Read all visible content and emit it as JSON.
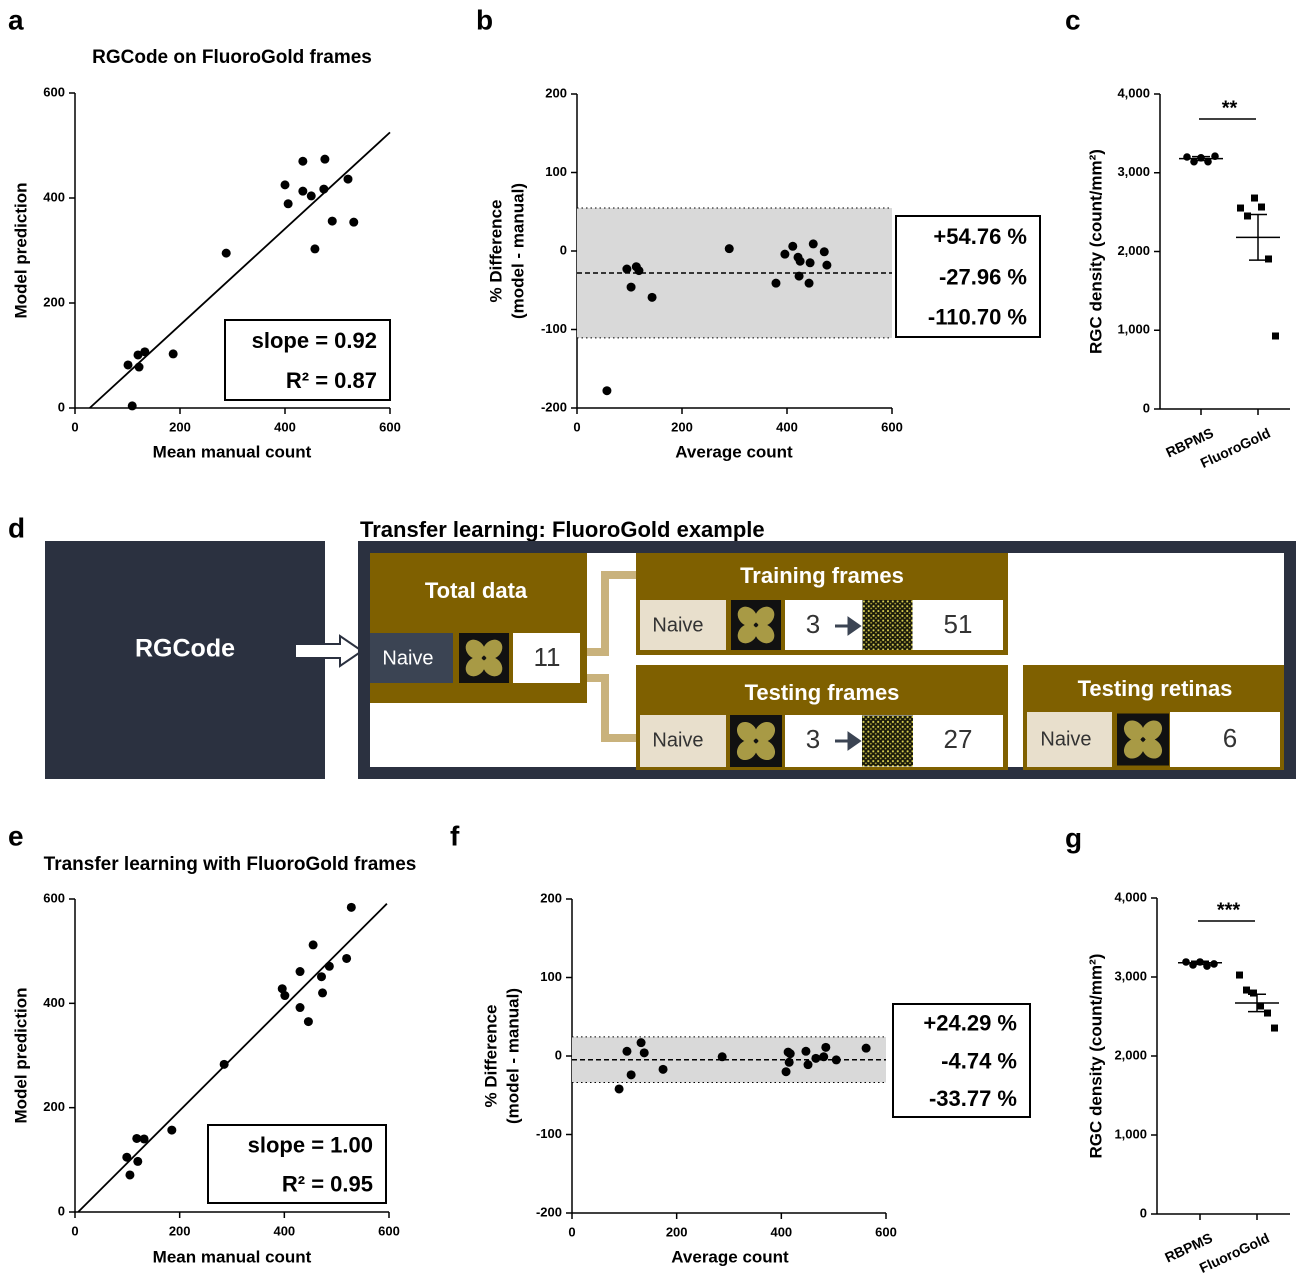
{
  "chart_data": [
    {
      "type": "scatter",
      "panel": "a",
      "title": "RGCode on FluoroGold frames",
      "xlabel": "Mean manual count",
      "ylabel": "Model prediction",
      "color": "#000000",
      "xlim": [
        0,
        600
      ],
      "ylim": [
        0,
        600
      ],
      "xticks": [
        0,
        200,
        400,
        600
      ],
      "yticks": [
        0,
        200,
        400,
        600
      ],
      "x": [
        101,
        109,
        120,
        122,
        133,
        187,
        288,
        400,
        406,
        434,
        434,
        450,
        457,
        474,
        476,
        490,
        520,
        531
      ],
      "values": [
        82,
        4,
        101,
        78,
        107,
        103,
        295,
        425,
        389,
        470,
        413,
        404,
        303,
        417,
        474,
        356,
        436,
        354
      ],
      "fit_line": {
        "x": [
          28,
          600
        ],
        "y": [
          0,
          525
        ]
      },
      "annotations": [
        "slope = 0.92",
        "R² = 0.87"
      ]
    },
    {
      "type": "blandaltman",
      "panel": "b",
      "xlabel": "Average count",
      "ylabel": [
        "% Difference",
        "(model - manual)"
      ],
      "color": "#000000",
      "xlim": [
        0,
        600
      ],
      "ylim": [
        -200,
        200
      ],
      "xticks": [
        0,
        200,
        400,
        600
      ],
      "yticks": [
        -200,
        -100,
        0,
        100,
        200
      ],
      "x": [
        57,
        95,
        103,
        113,
        118,
        143,
        290,
        379,
        396,
        411,
        421,
        423,
        425,
        442,
        444,
        450,
        471,
        476
      ],
      "values": [
        -178,
        -23,
        -46,
        -20,
        -25,
        -59,
        3,
        -41,
        -4,
        6,
        -8,
        -32,
        -13,
        -41,
        -15,
        9,
        -1,
        -18
      ],
      "limits": {
        "values": [
          54.76,
          -27.96,
          -110.7
        ],
        "value_labels": [
          "+54.76 %",
          "-27.96 %",
          "-110.70 %"
        ]
      }
    },
    {
      "type": "dotplot",
      "panel": "c",
      "ylabel": "RGC density (count/mm²)",
      "color": "#000000",
      "ylim": [
        0,
        4000
      ],
      "yticks": [
        0,
        {
          "value": 1000,
          "label": "1,000"
        },
        {
          "value": 2000,
          "label": "2,000"
        },
        {
          "value": 3000,
          "label": "3,000"
        },
        {
          "value": 4000,
          "label": "4,000"
        }
      ],
      "categories": [
        "RBPMS",
        "FluoroGold"
      ],
      "markers": [
        "circle",
        "square"
      ],
      "points": [
        [
          3200,
          3140,
          3190,
          3140,
          3210
        ],
        [
          2552,
          2451,
          2679,
          2565,
          1905,
          927
        ]
      ],
      "means": [
        3180,
        2180
      ],
      "errors": [
        25,
        290
      ],
      "significance": "**"
    },
    {
      "type": "scatter",
      "panel": "e",
      "title": "Transfer learning with FluoroGold frames",
      "xlabel": "Mean manual count",
      "ylabel": "Model prediction",
      "color": "#000000",
      "xlim": [
        0,
        600
      ],
      "ylim": [
        0,
        600
      ],
      "xticks": [
        0,
        200,
        400,
        600
      ],
      "yticks": [
        0,
        200,
        400,
        600
      ],
      "x": [
        99,
        105,
        118,
        120,
        132,
        185,
        285,
        396,
        401,
        430,
        430,
        446,
        455,
        471,
        473,
        486,
        519,
        528
      ],
      "values": [
        105,
        71,
        141,
        97,
        140,
        157,
        283,
        428,
        415,
        461,
        392,
        365,
        512,
        451,
        420,
        471,
        486,
        584
      ],
      "fit_line": {
        "x": [
          6,
          596
        ],
        "y": [
          0,
          591
        ]
      },
      "annotations": [
        "slope = 1.00",
        "R² = 0.95"
      ]
    },
    {
      "type": "blandaltman",
      "panel": "f",
      "xlabel": "Average count",
      "ylabel": [
        "% Difference",
        "(model - manual)"
      ],
      "color": "#000000",
      "xlim": [
        0,
        600
      ],
      "ylim": [
        -200,
        200
      ],
      "xticks": [
        0,
        200,
        400,
        600
      ],
      "yticks": [
        -200,
        -100,
        0,
        100,
        200
      ],
      "x": [
        90,
        105,
        113,
        132,
        138,
        174,
        287,
        409,
        413,
        415,
        417,
        447,
        451,
        466,
        481,
        485,
        505,
        562
      ],
      "values": [
        -42,
        6,
        -24,
        17,
        4,
        -17,
        -1,
        -20,
        5,
        -8,
        3,
        6,
        -11,
        -3,
        -1,
        11,
        -5,
        10
      ],
      "limits": {
        "values": [
          24.29,
          -4.74,
          -33.77
        ],
        "value_labels": [
          "+24.29 %",
          "-4.74 %",
          "-33.77 %"
        ]
      }
    },
    {
      "type": "dotplot",
      "panel": "g",
      "ylabel": "RGC density (count/mm²)",
      "color": "#000000",
      "ylim": [
        0,
        4000
      ],
      "yticks": [
        0,
        {
          "value": 1000,
          "label": "1,000"
        },
        {
          "value": 2000,
          "label": "2,000"
        },
        {
          "value": 3000,
          "label": "3,000"
        },
        {
          "value": 4000,
          "label": "4,000"
        }
      ],
      "categories": [
        "RBPMS",
        "FluoroGold"
      ],
      "markers": [
        "circle",
        "square"
      ],
      "points": [
        [
          3190,
          3152,
          3190,
          3139,
          3165
        ],
        [
          3025,
          2835,
          2797,
          2633,
          2544,
          2354
        ]
      ],
      "means": [
        3180,
        2671
      ],
      "errors": [
        20,
        110
      ],
      "significance": "***"
    }
  ],
  "diagram": {
    "panel": "d",
    "title": "Transfer learning: FluoroGold example",
    "model": "RGCode",
    "total_data": {
      "title": "Total data",
      "group": "Naive",
      "count": 11
    },
    "training_frames": {
      "title": "Training frames",
      "group": "Naive",
      "retinas": 3,
      "frames": 51
    },
    "testing_frames": {
      "title": "Testing frames",
      "group": "Naive",
      "retinas": 3,
      "frames": 27
    },
    "testing_retinas": {
      "title": "Testing retinas",
      "group": "Naive",
      "count": 6
    }
  }
}
